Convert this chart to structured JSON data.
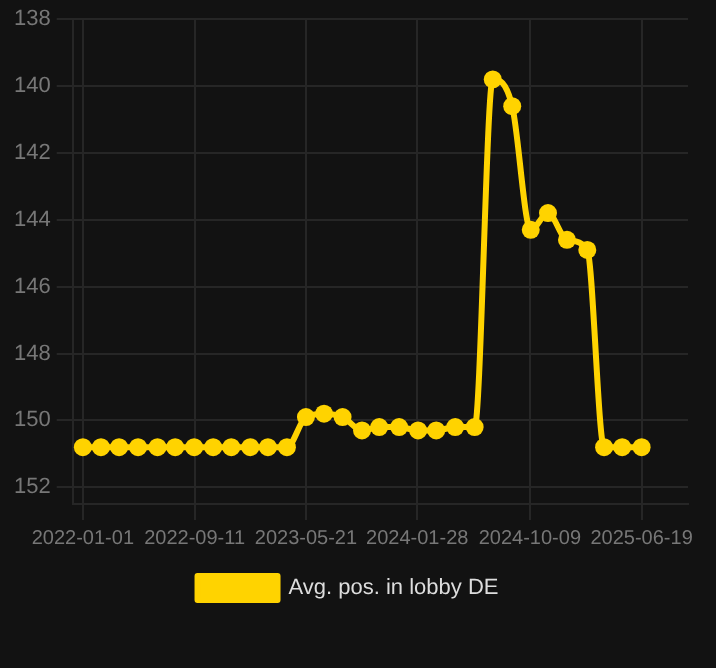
{
  "chart_data": {
    "type": "line",
    "x": [
      "2022-01-01",
      "2022-02-11",
      "2022-03-24",
      "2022-05-06",
      "2022-06-19",
      "2022-07-29",
      "2022-09-10",
      "2022-10-23",
      "2022-12-03",
      "2023-01-15",
      "2023-02-24",
      "2023-04-08",
      "2023-05-21",
      "2023-07-01",
      "2023-08-12",
      "2023-09-25",
      "2023-11-03",
      "2023-12-18",
      "2024-01-30",
      "2024-03-11",
      "2024-04-23",
      "2024-06-06",
      "2024-07-17",
      "2024-08-30",
      "2024-10-11",
      "2024-11-19",
      "2025-01-01",
      "2025-02-16",
      "2025-03-26",
      "2025-05-06",
      "2025-06-19"
    ],
    "series": [
      {
        "name": "Avg. pos. in lobby DE",
        "color": "#ffd300",
        "values": [
          150.8,
          150.8,
          150.8,
          150.8,
          150.8,
          150.8,
          150.8,
          150.8,
          150.8,
          150.8,
          150.8,
          150.8,
          149.9,
          149.8,
          149.9,
          150.3,
          150.2,
          150.2,
          150.3,
          150.3,
          150.2,
          150.2,
          139.8,
          140.6,
          144.3,
          143.8,
          144.6,
          144.9,
          150.8,
          150.8,
          150.8
        ]
      }
    ],
    "xlim": [
      "2021-12-09",
      "2025-10-02"
    ],
    "xticks": [
      "2022-01-01",
      "2022-09-11",
      "2023-05-21",
      "2024-01-28",
      "2024-10-09",
      "2025-06-19"
    ],
    "ylim": [
      152.5,
      138
    ],
    "yticks": [
      138,
      140,
      142,
      144,
      146,
      148,
      150,
      152
    ],
    "grid": true,
    "legend": "bottom",
    "marker": "circle",
    "line_style": "solid"
  }
}
